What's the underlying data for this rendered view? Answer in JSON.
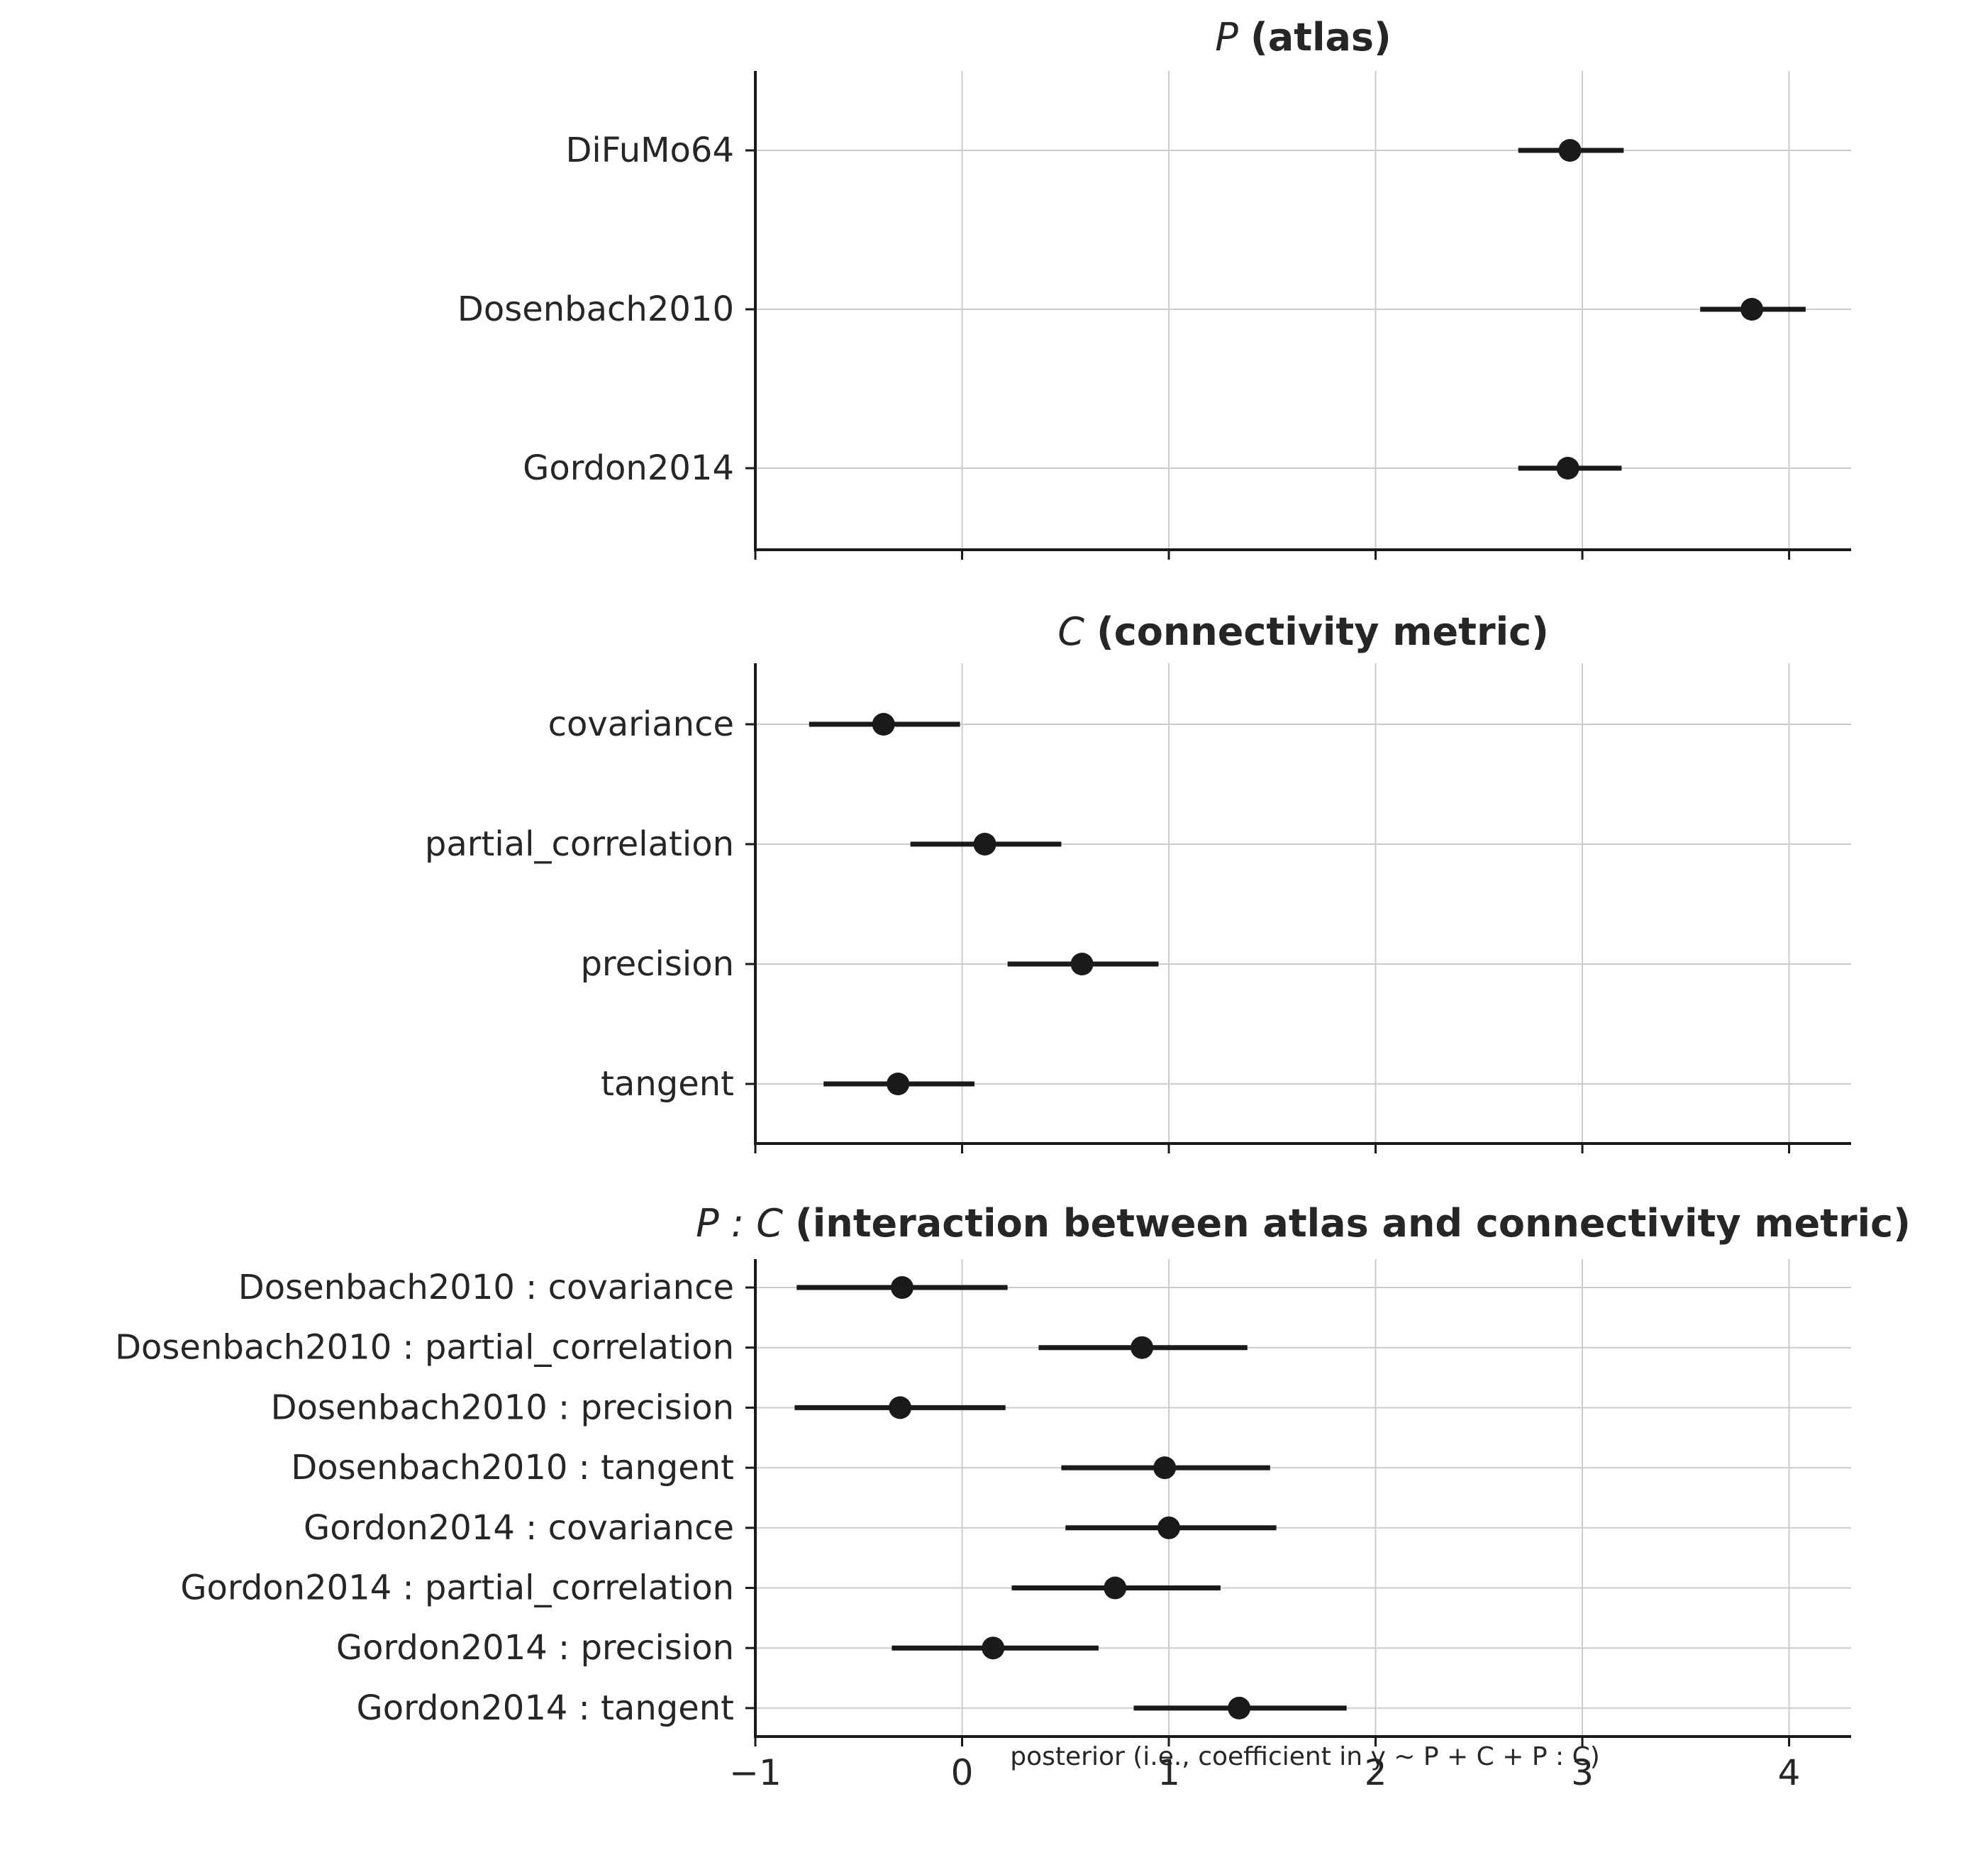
{
  "chart_data": [
    {
      "type": "forest",
      "title_italic": "P",
      "title": "(atlas)",
      "xlim": [
        -1.0,
        4.3
      ],
      "grid": true,
      "categories": [
        "DiFuMo64",
        "Dosenbach2010",
        "Gordon2014"
      ],
      "estimates": [
        2.94,
        3.82,
        2.93
      ],
      "interval_low": [
        2.69,
        3.57,
        2.69
      ],
      "interval_high": [
        3.2,
        4.08,
        3.19
      ]
    },
    {
      "type": "forest",
      "title_italic": "C",
      "title": "(connectivity metric)",
      "xlim": [
        -1.0,
        4.3
      ],
      "grid": true,
      "categories": [
        "covariance",
        "partial_correlation",
        "precision",
        "tangent"
      ],
      "estimates": [
        -0.38,
        0.11,
        0.58,
        -0.31
      ],
      "interval_low": [
        -0.74,
        -0.25,
        0.22,
        -0.67
      ],
      "interval_high": [
        -0.01,
        0.48,
        0.95,
        0.06
      ]
    },
    {
      "type": "forest",
      "title_italic": "P : C",
      "title": "(interaction between atlas and connectivity metric)",
      "xlim": [
        -1.0,
        4.3
      ],
      "xticks": [
        -1,
        0,
        1,
        2,
        3,
        4
      ],
      "xtick_labels": [
        "−1",
        "0",
        "1",
        "2",
        "3",
        "4"
      ],
      "xlabel": "posterior (i.e., coefficient in y ~ P + C + P : C)",
      "grid": true,
      "categories": [
        "Dosenbach2010 : covariance",
        "Dosenbach2010 : partial_correlation",
        "Dosenbach2010 : precision",
        "Dosenbach2010 : tangent",
        "Gordon2014 : covariance",
        "Gordon2014 : partial_correlation",
        "Gordon2014 : precision",
        "Gordon2014 : tangent"
      ],
      "estimates": [
        -0.29,
        0.87,
        -0.3,
        0.98,
        1.0,
        0.74,
        0.15,
        1.34
      ],
      "interval_low": [
        -0.8,
        0.37,
        -0.81,
        0.48,
        0.5,
        0.24,
        -0.34,
        0.83
      ],
      "interval_high": [
        0.22,
        1.38,
        0.21,
        1.49,
        1.52,
        1.25,
        0.66,
        1.86
      ]
    }
  ]
}
